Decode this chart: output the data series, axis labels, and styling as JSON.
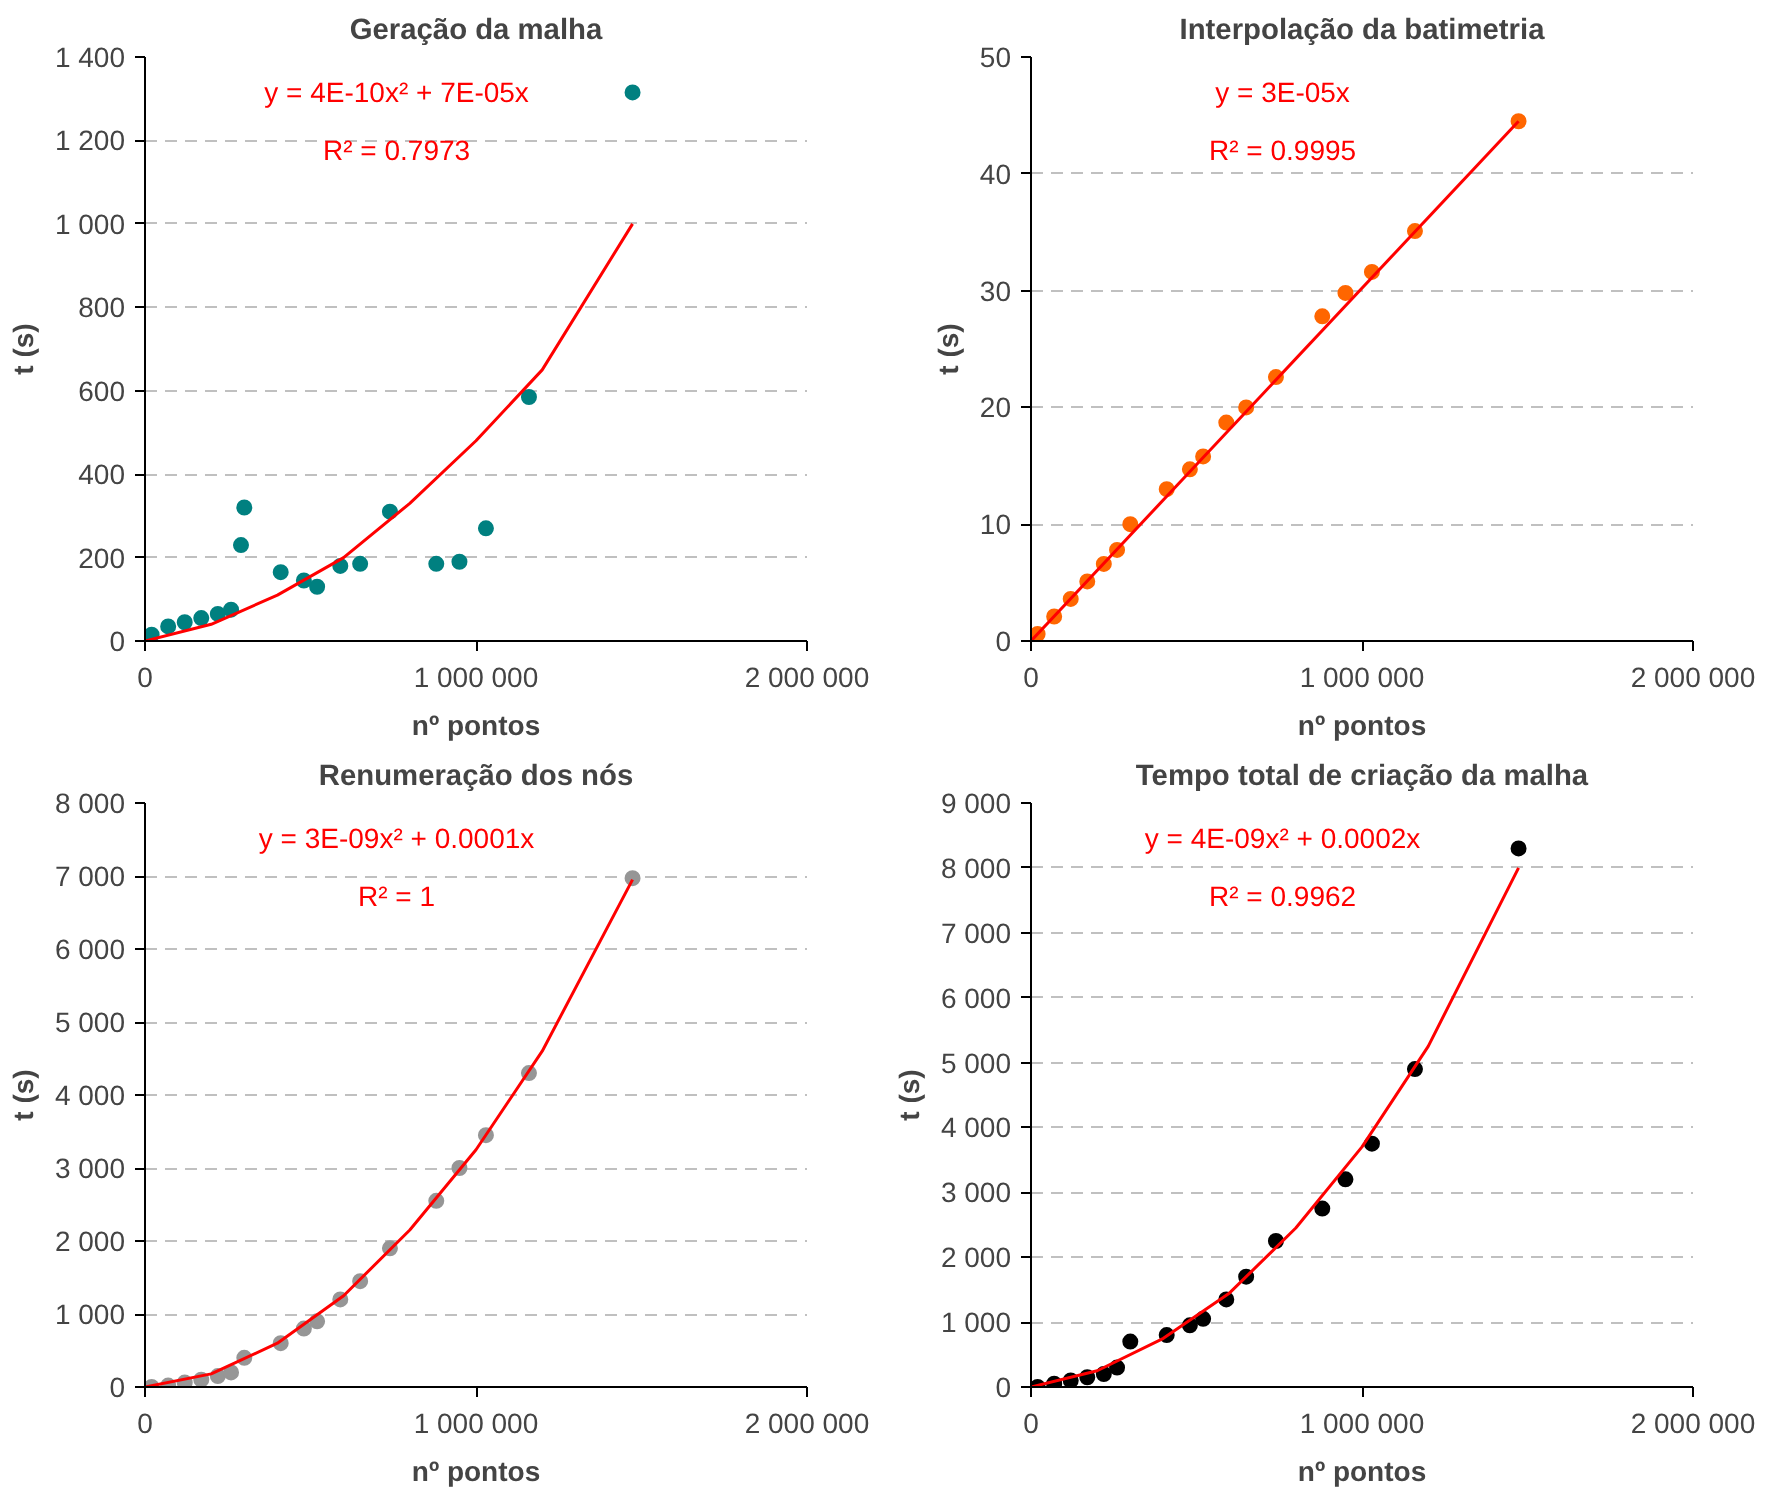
{
  "chart_data": [
    {
      "type": "scatter",
      "title": "Geração da malha",
      "xlabel": "nº pontos",
      "ylabel": "t (s)",
      "marker": "circle",
      "grid": "y",
      "xlim": [
        0,
        2000000
      ],
      "xticks": [
        {
          "value": 0,
          "label": "0"
        },
        {
          "value": 1000000,
          "label": "1 000 000"
        },
        {
          "value": 2000000,
          "label": "2 000 000"
        }
      ],
      "ylim": [
        0,
        1400
      ],
      "yticks": [
        0,
        200,
        400,
        600,
        800,
        {
          "value": 1000,
          "label": "1 000"
        },
        {
          "value": 1200,
          "label": "1 200"
        },
        {
          "value": 1400,
          "label": "1 400"
        }
      ],
      "annotations": [
        "y = 4E-10x² + 7E-05x",
        "R² = 0.7973"
      ],
      "series": [
        {
          "color": "#008080",
          "x": [
            20000,
            70000,
            120000,
            170000,
            220000,
            260000,
            290000,
            300000,
            410000,
            480000,
            520000,
            590000,
            650000,
            740000,
            880000,
            950000,
            1030000,
            1160000,
            1473000
          ],
          "values": [
            15,
            35,
            45,
            55,
            65,
            75,
            230,
            320,
            165,
            145,
            130,
            180,
            185,
            310,
            185,
            190,
            270,
            585,
            1315
          ]
        },
        {
          "type": "line",
          "marker": "none",
          "color": "#ff0000",
          "x": [
            0,
            200000,
            400000,
            600000,
            800000,
            1000000,
            1200000,
            1473000
          ],
          "values": [
            0,
            40,
            110,
            200,
            330,
            480,
            650,
            1000
          ]
        }
      ]
    },
    {
      "type": "scatter",
      "title": "Interpolação da batimetria",
      "xlabel": "nº pontos",
      "ylabel": "t (s)",
      "marker": "circle",
      "grid": "y",
      "xlim": [
        0,
        2000000
      ],
      "xticks": [
        {
          "value": 0,
          "label": "0"
        },
        {
          "value": 1000000,
          "label": "1 000 000"
        },
        {
          "value": 2000000,
          "label": "2 000 000"
        }
      ],
      "ylim": [
        0,
        50
      ],
      "yticks": [
        0,
        10,
        20,
        30,
        40,
        50
      ],
      "annotations": [
        "y = 3E-05x",
        "R² = 0.9995"
      ],
      "series": [
        {
          "color": "#ff6600",
          "x": [
            20000,
            70000,
            120000,
            170000,
            220000,
            260000,
            300000,
            410000,
            480000,
            520000,
            590000,
            650000,
            740000,
            880000,
            950000,
            1030000,
            1160000,
            1473000
          ],
          "values": [
            0.6,
            2.1,
            3.6,
            5.1,
            6.6,
            7.8,
            10,
            13,
            14.7,
            15.8,
            18.7,
            20,
            22.6,
            27.8,
            29.8,
            31.6,
            35.1,
            44.5
          ]
        },
        {
          "type": "line",
          "marker": "none",
          "color": "#ff0000",
          "x": [
            0,
            1473000
          ],
          "values": [
            0,
            44.5
          ]
        }
      ]
    },
    {
      "type": "scatter",
      "title": "Renumeração dos nós",
      "xlabel": "nº pontos",
      "ylabel": "t (s)",
      "marker": "circle",
      "grid": "y",
      "xlim": [
        0,
        2000000
      ],
      "xticks": [
        {
          "value": 0,
          "label": "0"
        },
        {
          "value": 1000000,
          "label": "1 000 000"
        },
        {
          "value": 2000000,
          "label": "2 000 000"
        }
      ],
      "ylim": [
        0,
        8000
      ],
      "yticks": [
        0,
        {
          "value": 1000,
          "label": "1 000"
        },
        {
          "value": 2000,
          "label": "2 000"
        },
        {
          "value": 3000,
          "label": "3 000"
        },
        {
          "value": 4000,
          "label": "4 000"
        },
        {
          "value": 5000,
          "label": "5 000"
        },
        {
          "value": 6000,
          "label": "6 000"
        },
        {
          "value": 7000,
          "label": "7 000"
        },
        {
          "value": 8000,
          "label": "8 000"
        }
      ],
      "annotations": [
        "y = 3E-09x² + 0.0001x",
        "R² = 1"
      ],
      "series": [
        {
          "color": "#969696",
          "x": [
            20000,
            70000,
            120000,
            170000,
            220000,
            260000,
            300000,
            410000,
            480000,
            520000,
            590000,
            650000,
            740000,
            880000,
            950000,
            1030000,
            1160000,
            1473000
          ],
          "values": [
            0,
            20,
            60,
            100,
            150,
            200,
            400,
            600,
            800,
            900,
            1200,
            1450,
            1900,
            2550,
            3000,
            3450,
            4300,
            6970
          ]
        },
        {
          "type": "line",
          "marker": "none",
          "color": "#ff0000",
          "x": [
            0,
            200000,
            400000,
            600000,
            800000,
            1000000,
            1200000,
            1473000
          ],
          "values": [
            0,
            180,
            600,
            1250,
            2150,
            3250,
            4600,
            6950
          ]
        }
      ]
    },
    {
      "type": "scatter",
      "title": "Tempo total de criação da malha",
      "xlabel": "nº pontos",
      "ylabel": "t (s)",
      "marker": "circle",
      "grid": "y",
      "xlim": [
        0,
        2000000
      ],
      "xticks": [
        {
          "value": 0,
          "label": "0"
        },
        {
          "value": 1000000,
          "label": "1 000 000"
        },
        {
          "value": 2000000,
          "label": "2 000 000"
        }
      ],
      "ylim": [
        0,
        9000
      ],
      "yticks": [
        0,
        {
          "value": 1000,
          "label": "1 000"
        },
        {
          "value": 2000,
          "label": "2 000"
        },
        {
          "value": 3000,
          "label": "3 000"
        },
        {
          "value": 4000,
          "label": "4 000"
        },
        {
          "value": 5000,
          "label": "5 000"
        },
        {
          "value": 6000,
          "label": "6 000"
        },
        {
          "value": 7000,
          "label": "7 000"
        },
        {
          "value": 8000,
          "label": "8 000"
        },
        {
          "value": 9000,
          "label": "9 000"
        }
      ],
      "annotations": [
        "y = 4E-09x² + 0.0002x",
        "R² = 0.9962"
      ],
      "series": [
        {
          "color": "#000000",
          "x": [
            20000,
            70000,
            120000,
            170000,
            220000,
            260000,
            300000,
            410000,
            480000,
            520000,
            590000,
            650000,
            740000,
            880000,
            950000,
            1030000,
            1160000,
            1473000
          ],
          "values": [
            0,
            50,
            100,
            150,
            200,
            300,
            700,
            800,
            950,
            1050,
            1350,
            1700,
            2250,
            2750,
            3200,
            3750,
            4900,
            8300
          ]
        },
        {
          "type": "line",
          "marker": "none",
          "color": "#ff0000",
          "x": [
            0,
            200000,
            400000,
            600000,
            800000,
            1000000,
            1200000,
            1473000
          ],
          "values": [
            0,
            250,
            750,
            1450,
            2450,
            3700,
            5250,
            8000
          ]
        }
      ]
    }
  ]
}
